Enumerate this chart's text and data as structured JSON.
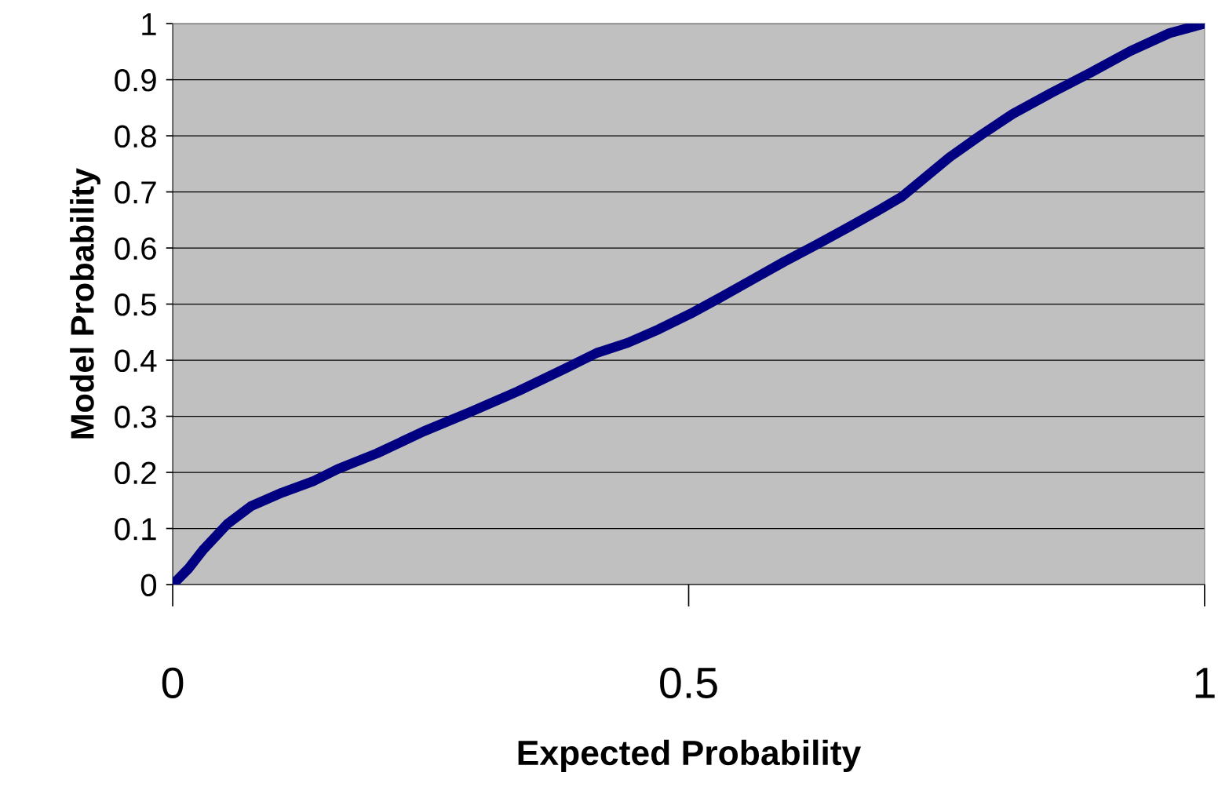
{
  "chart_data": {
    "type": "line",
    "xlabel": "Expected Probability",
    "ylabel": "Model Probability",
    "xlim": [
      0,
      1
    ],
    "ylim": [
      0,
      1
    ],
    "xticks": [
      0,
      0.5,
      1
    ],
    "yticks": [
      0,
      0.1,
      0.2,
      0.3,
      0.4,
      0.5,
      0.6,
      0.7,
      0.8,
      0.9,
      1
    ],
    "grid": "y",
    "series": [
      {
        "color": "#000080",
        "x": [
          0,
          0.015,
          0.03,
          0.053,
          0.076,
          0.106,
          0.137,
          0.16,
          0.198,
          0.243,
          0.289,
          0.335,
          0.38,
          0.411,
          0.441,
          0.471,
          0.502,
          0.532,
          0.563,
          0.593,
          0.624,
          0.654,
          0.684,
          0.707,
          0.73,
          0.753,
          0.783,
          0.814,
          0.852,
          0.89,
          0.928,
          0.966,
          1
        ],
        "values": [
          0,
          0.028,
          0.063,
          0.108,
          0.14,
          0.164,
          0.185,
          0.206,
          0.234,
          0.273,
          0.308,
          0.345,
          0.385,
          0.413,
          0.431,
          0.455,
          0.483,
          0.513,
          0.545,
          0.576,
          0.606,
          0.636,
          0.667,
          0.692,
          0.727,
          0.762,
          0.801,
          0.839,
          0.877,
          0.913,
          0.951,
          0.983,
          1
        ]
      }
    ]
  }
}
